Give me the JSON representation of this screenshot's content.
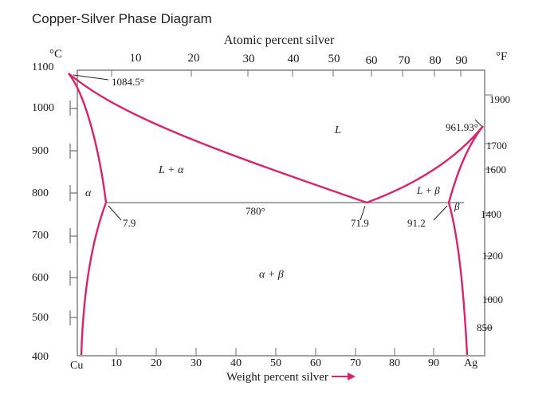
{
  "page_heading": "Copper-Silver Phase Diagram",
  "diagram": {
    "top_axis_title": "Atomic percent silver",
    "top_axis_ticks": [
      "10",
      "20",
      "30",
      "40",
      "50",
      "60",
      "70",
      "80",
      "90"
    ],
    "bottom_axis_title": "Weight percent silver",
    "bottom_axis_ticks": [
      "10",
      "20",
      "30",
      "40",
      "50",
      "60",
      "70",
      "80",
      "90"
    ],
    "bottom_left_end": "Cu",
    "bottom_right_end": "Ag",
    "left_unit": "°C",
    "left_ticks": [
      "1100",
      "1000",
      "900",
      "800",
      "700",
      "600",
      "500",
      "400"
    ],
    "right_unit": "°F",
    "right_ticks": [
      "1900",
      "1700",
      "1600",
      "1400",
      "1200",
      "1000",
      "850"
    ],
    "regions": {
      "liquid": "L",
      "l_alpha": "L + α",
      "l_beta": "L + β",
      "alpha": "α",
      "beta": "β",
      "alpha_beta": "α + β"
    },
    "points": {
      "cu_melting": "1084.5°",
      "ag_melting": "961.93°",
      "eutectic_temp": "780°",
      "alpha_limit": "7.9",
      "eutectic_comp": "71.9",
      "beta_limit": "91.2"
    },
    "colors": {
      "phase_boundary": "#d6246e",
      "axis": "#6f6f6f",
      "eutectic_line": "#888888"
    }
  }
}
